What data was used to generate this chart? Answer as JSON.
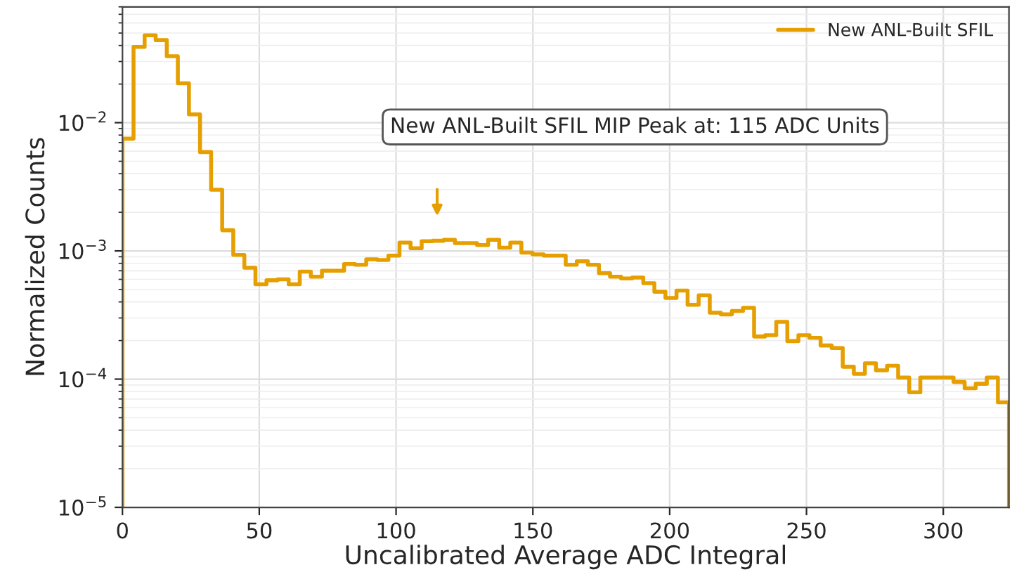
{
  "chart_data": {
    "type": "histogram",
    "xlabel": "Uncalibrated Average ADC Integral",
    "ylabel": "Normalized Counts",
    "bins": [
      0,
      4.05,
      8.1,
      12.15,
      16.2,
      20.25,
      24.3,
      28.35,
      32.4,
      36.45,
      40.5,
      44.55,
      48.6,
      52.65,
      56.7,
      60.75,
      64.8,
      68.85,
      72.9,
      76.95,
      81,
      85.05,
      89.1,
      93.15,
      97.2,
      101.25,
      105.3,
      109.35,
      113.4,
      117.45,
      121.5,
      125.55,
      129.6,
      133.65,
      137.7,
      141.75,
      145.8,
      149.85,
      153.9,
      157.95,
      162,
      166.05,
      170.1,
      174.15,
      178.2,
      182.25,
      186.3,
      190.35,
      194.4,
      198.45,
      202.5,
      206.55,
      210.6,
      214.65,
      218.7,
      222.75,
      226.8,
      230.85,
      234.9,
      238.95,
      243,
      247.05,
      251.1,
      255.15,
      259.2,
      263.25,
      267.3,
      271.35,
      275.4,
      279.45,
      283.5,
      287.55,
      291.6,
      295.65,
      299.7,
      303.75,
      307.8,
      311.85,
      315.9,
      319.95,
      324
    ],
    "series": [
      {
        "name": "New ANL-Built SFIL",
        "color": "#e69f00",
        "values": [
          0.0075,
          0.039,
          0.048,
          0.044,
          0.033,
          0.0203,
          0.0116,
          0.0059,
          0.003,
          0.00145,
          0.00093,
          0.00074,
          0.00055,
          0.00059,
          0.0006,
          0.00055,
          0.00069,
          0.00063,
          0.0007,
          0.0007,
          0.00079,
          0.00078,
          0.00086,
          0.00085,
          0.00092,
          0.00116,
          0.00105,
          0.00119,
          0.0012,
          0.00122,
          0.00115,
          0.00115,
          0.00111,
          0.00122,
          0.00106,
          0.00116,
          0.00097,
          0.00094,
          0.00092,
          0.00092,
          0.00078,
          0.00083,
          0.00078,
          0.00067,
          0.00063,
          0.00061,
          0.00062,
          0.00056,
          0.00048,
          0.00043,
          0.00049,
          0.00038,
          0.00045,
          0.00033,
          0.00032,
          0.00034,
          0.00036,
          0.000215,
          0.00022,
          0.00028,
          0.000198,
          0.00022,
          0.00021,
          0.000183,
          0.000175,
          0.000125,
          0.00011,
          0.000133,
          0.000117,
          0.000127,
          0.000103,
          7.9e-05,
          0.000103,
          0.000103,
          0.000103,
          9.5e-05,
          8.5e-05,
          9.2e-05,
          0.000103,
          6.6e-05
        ]
      }
    ],
    "annotations": [
      "New ANL-Built SFIL MIP Peak at: 115 ADC Units"
    ],
    "xlim": [
      0,
      324
    ],
    "ylim": [
      1e-05,
      0.08
    ],
    "xticks": [
      0,
      50,
      100,
      150,
      200,
      250,
      300
    ],
    "yticks": [
      {
        "value": 1e-05,
        "label": "10$^{−5}$"
      },
      {
        "value": 0.0001,
        "label": "10$^{−4}$"
      },
      {
        "value": 0.001,
        "label": "10$^{−3}$"
      },
      {
        "value": 0.01,
        "label": "10$^{−2}$"
      }
    ],
    "log": "y",
    "grid": true,
    "legend": "top right"
  }
}
